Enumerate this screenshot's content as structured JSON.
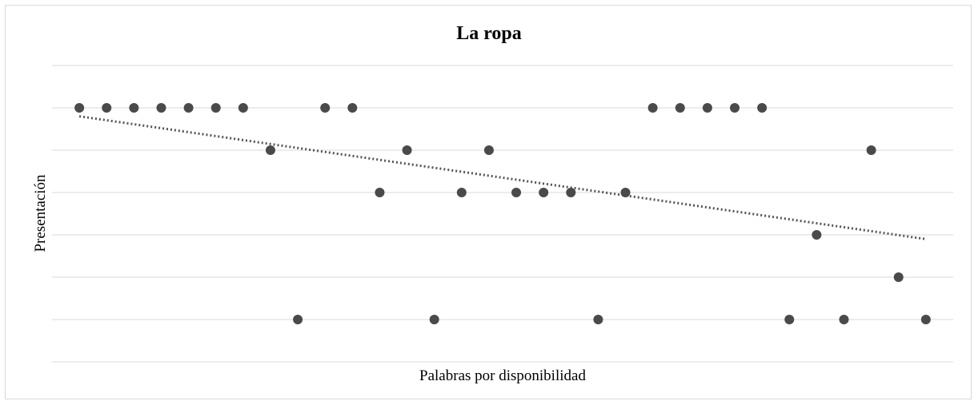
{
  "chart_data": {
    "type": "scatter",
    "title": "La ropa",
    "xlabel": "Palabras por disponibilidad",
    "ylabel": "Presentación",
    "x_tick_labels_shown": false,
    "y_tick_labels_shown": false,
    "grid": "horizontal",
    "xlim": [
      0,
      33
    ],
    "ylim": [
      0,
      7
    ],
    "point_color": "#4a4a4a",
    "trendline": {
      "style": "dotted",
      "color": "#555555",
      "x": [
        1,
        32
      ],
      "y": [
        5.8,
        2.9
      ]
    },
    "points": [
      {
        "x": 1,
        "y": 6
      },
      {
        "x": 2,
        "y": 6
      },
      {
        "x": 3,
        "y": 6
      },
      {
        "x": 4,
        "y": 6
      },
      {
        "x": 5,
        "y": 6
      },
      {
        "x": 6,
        "y": 6
      },
      {
        "x": 7,
        "y": 6
      },
      {
        "x": 8,
        "y": 5
      },
      {
        "x": 9,
        "y": 1
      },
      {
        "x": 10,
        "y": 6
      },
      {
        "x": 11,
        "y": 6
      },
      {
        "x": 12,
        "y": 4
      },
      {
        "x": 13,
        "y": 5
      },
      {
        "x": 14,
        "y": 1
      },
      {
        "x": 15,
        "y": 4
      },
      {
        "x": 16,
        "y": 5
      },
      {
        "x": 17,
        "y": 4
      },
      {
        "x": 18,
        "y": 4
      },
      {
        "x": 19,
        "y": 4
      },
      {
        "x": 20,
        "y": 1
      },
      {
        "x": 21,
        "y": 4
      },
      {
        "x": 22,
        "y": 6
      },
      {
        "x": 23,
        "y": 6
      },
      {
        "x": 24,
        "y": 6
      },
      {
        "x": 25,
        "y": 6
      },
      {
        "x": 26,
        "y": 6
      },
      {
        "x": 27,
        "y": 1
      },
      {
        "x": 28,
        "y": 3
      },
      {
        "x": 29,
        "y": 1
      },
      {
        "x": 30,
        "y": 5
      },
      {
        "x": 31,
        "y": 2
      },
      {
        "x": 32,
        "y": 1
      }
    ]
  }
}
